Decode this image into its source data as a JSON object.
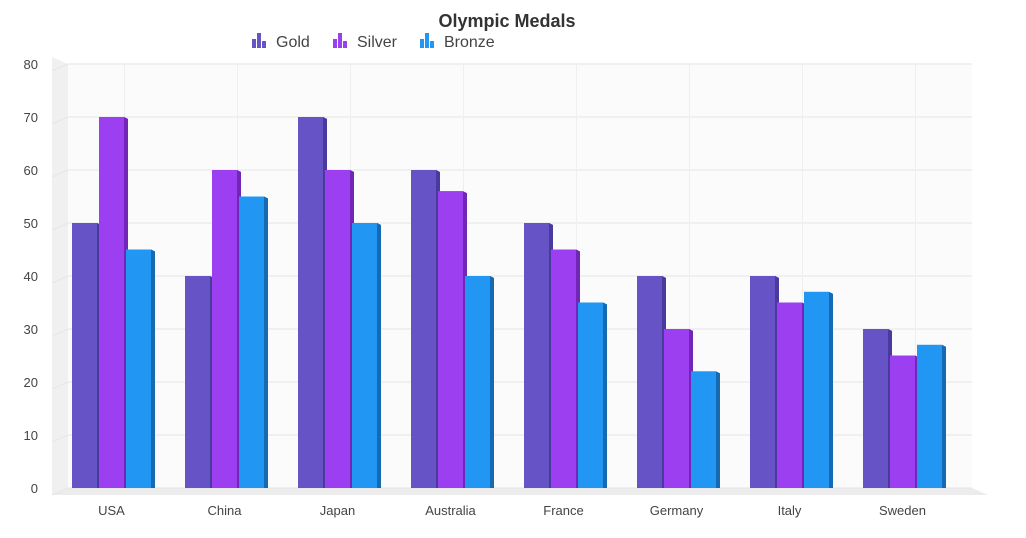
{
  "chart_data": {
    "type": "bar",
    "title": "Olympic Medals",
    "categories": [
      "USA",
      "China",
      "Japan",
      "Australia",
      "France",
      "Germany",
      "Italy",
      "Sweden"
    ],
    "series": [
      {
        "name": "Gold",
        "color": "#6653C6",
        "side_color": "#4B3A9E",
        "values": [
          50,
          40,
          70,
          60,
          50,
          40,
          40,
          30
        ]
      },
      {
        "name": "Silver",
        "color": "#9B3FF0",
        "side_color": "#7226B8",
        "values": [
          70,
          60,
          60,
          56,
          45,
          30,
          35,
          25
        ]
      },
      {
        "name": "Bronze",
        "color": "#2196F3",
        "side_color": "#1669B3",
        "values": [
          45,
          55,
          50,
          40,
          35,
          22,
          37,
          27
        ]
      }
    ],
    "ylim": [
      0,
      80
    ],
    "yticks": [
      0,
      10,
      20,
      30,
      40,
      50,
      60,
      70,
      80
    ],
    "grid": true,
    "legend_position": "top",
    "legend_icon": "bar-chart-icon",
    "style": "3d-column"
  }
}
